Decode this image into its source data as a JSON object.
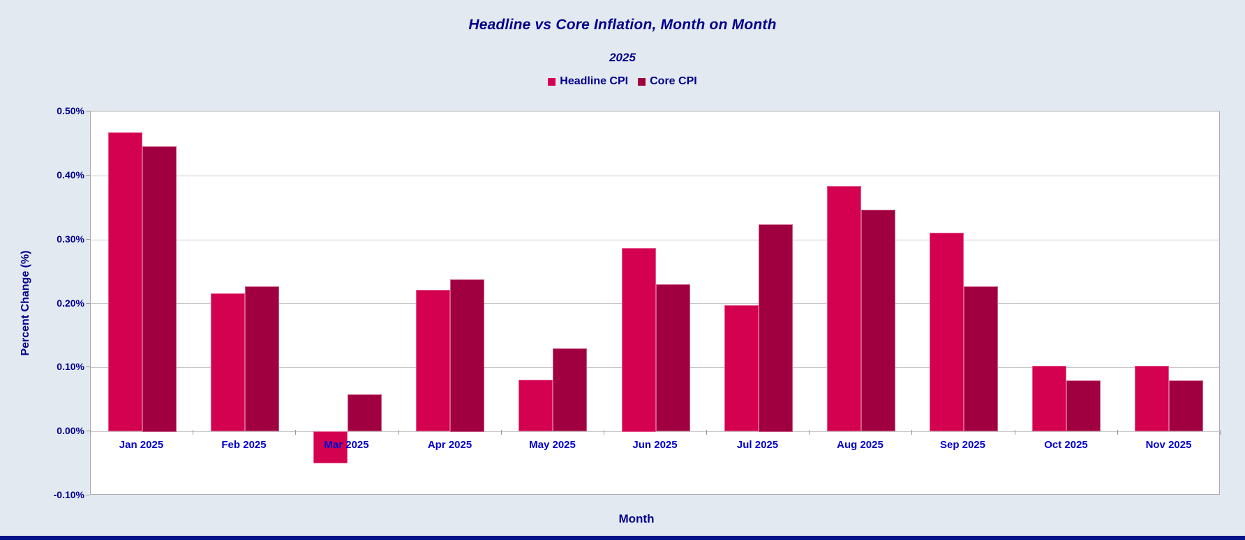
{
  "page": {
    "background_color": "#E3E9F0",
    "bottom_bar_color": "#001489"
  },
  "chart_data": {
    "type": "bar",
    "title": "Headline vs Core Inflation, Month on Month",
    "subtitle": "2025",
    "xlabel": "Month",
    "ylabel": "Percent Change (%)",
    "categories": [
      "Jan 2025",
      "Feb 2025",
      "Mar 2025",
      "Apr 2025",
      "May 2025",
      "Jun 2025",
      "Jul 2025",
      "Aug 2025",
      "Sep 2025",
      "Oct 2025",
      "Nov 2025"
    ],
    "series": [
      {
        "name": "Headline CPI",
        "color": "#D3014F",
        "values": [
          0.467,
          0.216,
          -0.05,
          0.221,
          0.081,
          0.287,
          0.197,
          0.383,
          0.31,
          0.102,
          0.102
        ]
      },
      {
        "name": "Core CPI",
        "color": "#A00040",
        "values": [
          0.446,
          0.227,
          0.058,
          0.238,
          0.13,
          0.23,
          0.324,
          0.346,
          0.227,
          0.08,
          0.08
        ]
      }
    ],
    "ylim": [
      -0.1,
      0.5
    ],
    "ytick_step": 0.1,
    "ytick_labels": [
      "0.50%",
      "0.40%",
      "0.30%",
      "0.20%",
      "0.10%",
      "0.00%",
      "-0.10%"
    ],
    "grid": "horizontal",
    "grid_color": "#C6C6C6",
    "plot_background": "#FFFFFF",
    "plot_border_color": "#ABABAB",
    "title_color": "#00008B",
    "x_tick_label_color": "#0000CD",
    "y_tick_label_color": "#000090",
    "legend_position": "top-center"
  }
}
